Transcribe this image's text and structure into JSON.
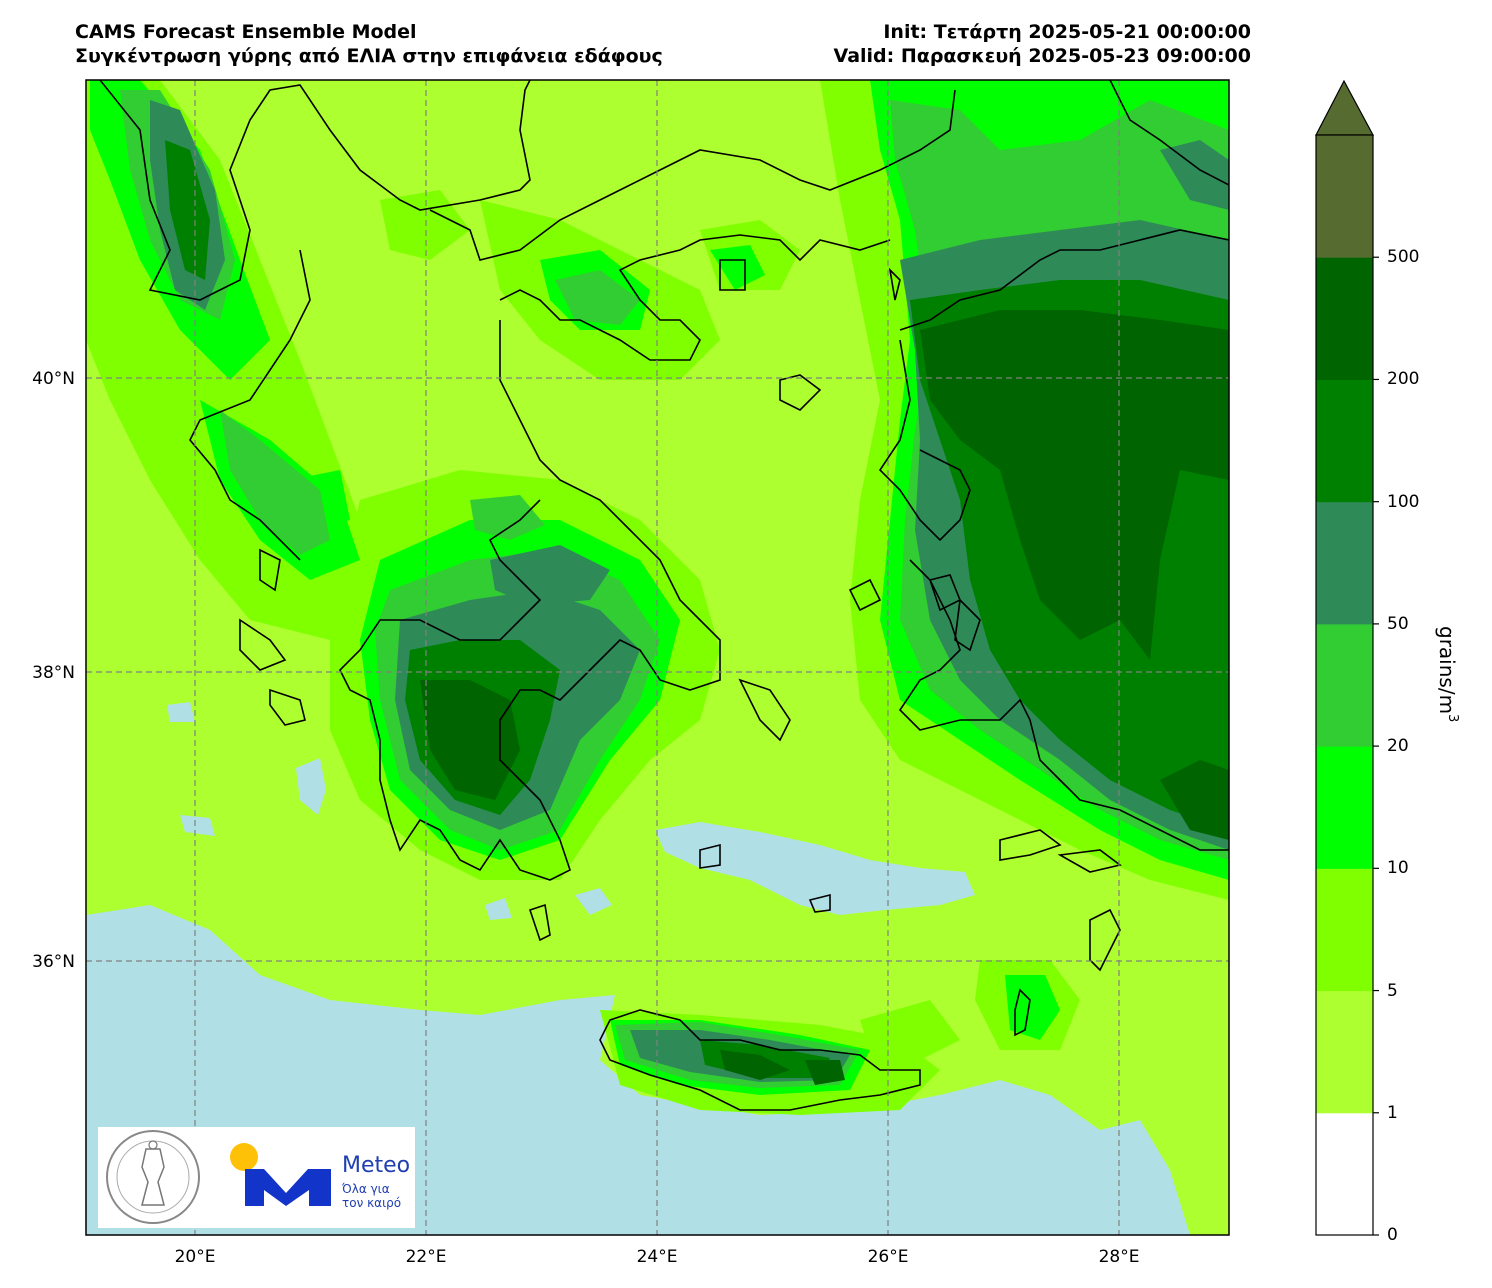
{
  "header": {
    "left_line1": "CAMS Forecast Ensemble Model",
    "left_line2": "Συγκέντρωση γύρης από ΕΛΙΑ στην επιφάνεια εδάφους",
    "right_line1": "Init: Τετάρτη 2025-05-21 00:00:00",
    "right_line2": "Valid: Παρασκευή 2025-05-23 09:00:00"
  },
  "axes": {
    "lon_ticks": [
      "20°E",
      "22°E",
      "24°E",
      "26°E",
      "28°E"
    ],
    "lat_ticks": [
      "40°N",
      "38°N",
      "36°N"
    ]
  },
  "colorbar": {
    "levels": [
      "0",
      "1",
      "5",
      "10",
      "20",
      "50",
      "100",
      "200",
      "500"
    ],
    "unit": "grains/m",
    "unit_sup": "3",
    "colors": [
      "#ffffff",
      "#adff2f",
      "#7fff00",
      "#00ff00",
      "#32cd32",
      "#2e8b57",
      "#008000",
      "#006400",
      "#556b2f"
    ]
  },
  "logos": {
    "meteo_word": "Meteo",
    "meteo_tag_line1": "Όλα για",
    "meteo_tag_line2": "τον καιρό"
  },
  "colors": {
    "sea": "#b0e0e6",
    "land_base": "#adff2f"
  }
}
